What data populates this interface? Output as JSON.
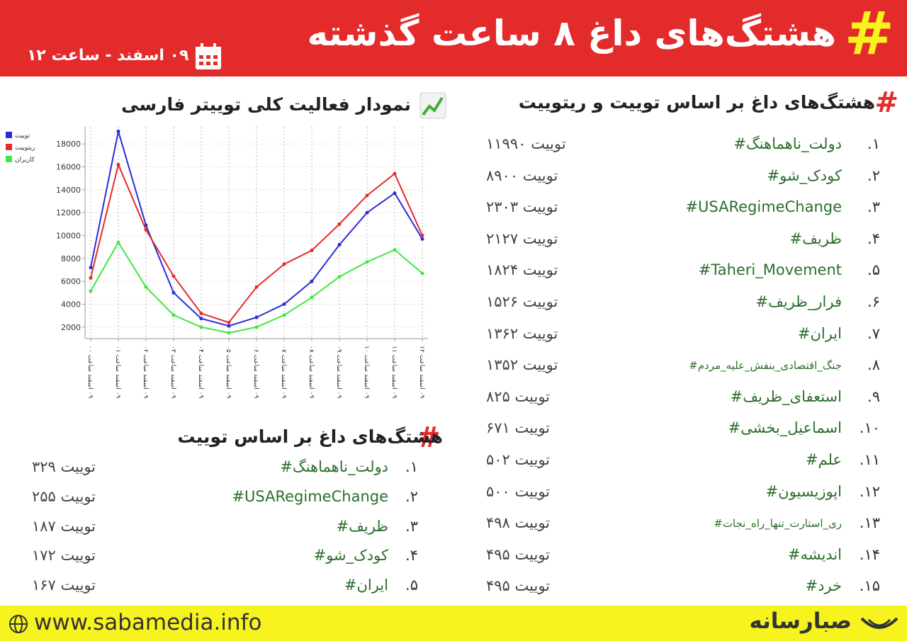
{
  "header": {
    "title": "هشتگ‌های داغ ۸ ساعت گذشته",
    "date": "۰۹ اسفند - ساعت ۱۲"
  },
  "chart_data": {
    "type": "line",
    "title": "نمودار فعالیت کلی توییتر فارسی",
    "categories": [
      "۰۹ اسفند ساعت ۰۰",
      "۰۹ اسفند ساعت ۰۱",
      "۰۹ اسفند ساعت ۰۲",
      "۰۹ اسفند ساعت ۰۳",
      "۰۹ اسفند ساعت ۰۴",
      "۰۹ اسفند ساعت ۰۵",
      "۰۹ اسفند ساعت ۰۶",
      "۰۹ اسفند ساعت ۰۷",
      "۰۹ اسفند ساعت ۰۸",
      "۰۹ اسفند ساعت ۰۹",
      "۰۹ اسفند ساعت ۱۰",
      "۰۹ اسفند ساعت ۱۱",
      "۰۹ اسفند ساعت ۱۲"
    ],
    "series": [
      {
        "name": "توییت",
        "color": "#2b2bdc",
        "values": [
          7200,
          19100,
          10900,
          5000,
          2750,
          2100,
          2850,
          4000,
          6000,
          9200,
          12000,
          13700,
          9700
        ]
      },
      {
        "name": "ریتوییت",
        "color": "#e82a2a",
        "values": [
          6300,
          16200,
          10500,
          6450,
          3200,
          2400,
          5500,
          7500,
          8700,
          11000,
          13500,
          15400,
          10000
        ]
      },
      {
        "name": "کاربران",
        "color": "#3ee83e",
        "values": [
          5150,
          9400,
          5500,
          3050,
          2000,
          1500,
          2000,
          3050,
          4600,
          6400,
          7700,
          8750,
          6700
        ]
      }
    ],
    "ylim": [
      1000,
      19500
    ],
    "yticks": [
      2000,
      4000,
      6000,
      8000,
      10000,
      12000,
      14000,
      16000,
      18000
    ],
    "grid": true,
    "legend": "top-left"
  },
  "list_combined": {
    "title": "هشتگ‌های داغ بر اساس توییت و ریتوییت",
    "items": [
      {
        "rank": "۱.",
        "hashtag": "#دولت_ناهماهنگ",
        "count": "۱۱۹۹۰ توییت"
      },
      {
        "rank": "۲.",
        "hashtag": "#کودک_شو",
        "count": "۸۹۰۰ توییت"
      },
      {
        "rank": "۳.",
        "hashtag": "#USARegimeChange",
        "count": "۲۳۰۳ توییت"
      },
      {
        "rank": "۴.",
        "hashtag": "#ظریف",
        "count": "۲۱۲۷ توییت"
      },
      {
        "rank": "۵.",
        "hashtag": "#Taheri_Movement",
        "count": "۱۸۲۴ توییت"
      },
      {
        "rank": "۶.",
        "hashtag": "#فرار_ظریف",
        "count": "۱۵۲۶ توییت"
      },
      {
        "rank": "۷.",
        "hashtag": "#ایران",
        "count": "۱۳۶۲ توییت"
      },
      {
        "rank": "۸.",
        "hashtag": "#جنگ_اقتصادی_بنفش_علیه_مردم",
        "count": "۱۳۵۲ توییت"
      },
      {
        "rank": "۹.",
        "hashtag": "#استعفای_ظریف",
        "count": "۸۲۵ توییت"
      },
      {
        "rank": "۱۰.",
        "hashtag": "#اسماعیل_بخشی",
        "count": "۶۷۱ توییت"
      },
      {
        "rank": "۱۱.",
        "hashtag": "#علم",
        "count": "۵۰۲ توییت"
      },
      {
        "rank": "۱۲.",
        "hashtag": "#اپوزیسیون",
        "count": "۵۰۰ توییت"
      },
      {
        "rank": "۱۳.",
        "hashtag": "#ری_استارت_تنها_راه_نجات",
        "count": "۴۹۸ توییت"
      },
      {
        "rank": "۱۴.",
        "hashtag": "#اندیشه",
        "count": "۴۹۵ توییت"
      },
      {
        "rank": "۱۵.",
        "hashtag": "#خرد",
        "count": "۴۹۵ توییت"
      }
    ]
  },
  "list_tweets": {
    "title": "هشتگ‌های داغ بر اساس توییت",
    "items": [
      {
        "rank": "۱.",
        "hashtag": "#دولت_ناهماهنگ",
        "count": "۳۲۹ توییت"
      },
      {
        "rank": "۲.",
        "hashtag": "#USARegimeChange",
        "count": "۲۵۵ توییت"
      },
      {
        "rank": "۳.",
        "hashtag": "#ظریف",
        "count": "۱۸۷ توییت"
      },
      {
        "rank": "۴.",
        "hashtag": "#کودک_شو",
        "count": "۱۷۲ توییت"
      },
      {
        "rank": "۵.",
        "hashtag": "#ایران",
        "count": "۱۶۷ توییت"
      }
    ]
  },
  "footer": {
    "url": "www.sabamedia.info",
    "brand": "صبارسانه"
  }
}
